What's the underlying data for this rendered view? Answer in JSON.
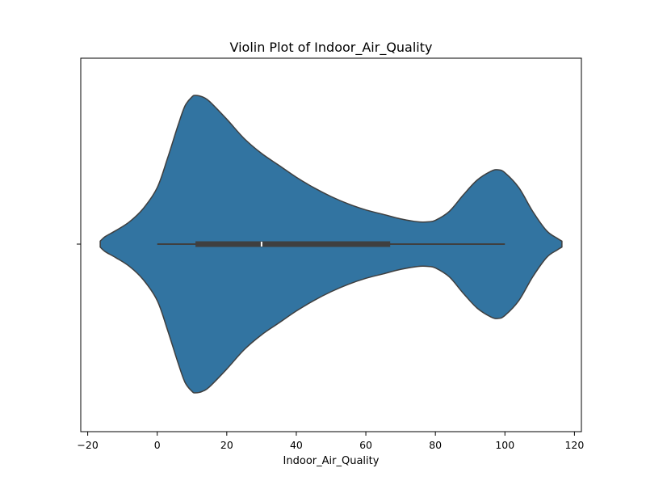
{
  "chart_data": {
    "type": "violin",
    "title": "Violin Plot of Indoor_Air_Quality",
    "xlabel": "Indoor_Air_Quality",
    "ylabel": "",
    "xlim": [
      -22,
      122
    ],
    "x_ticks": [
      -20,
      0,
      20,
      40,
      60,
      80,
      100,
      120
    ],
    "x_tick_labels": [
      "−20",
      "0",
      "20",
      "40",
      "60",
      "80",
      "100",
      "120"
    ],
    "orientation": "horizontal",
    "grid": false,
    "legend": "none",
    "series": [
      {
        "color": "#3274a1",
        "density": [
          [
            -16.4,
            0.02
          ],
          [
            -15,
            0.05
          ],
          [
            -12,
            0.09
          ],
          [
            -8,
            0.15
          ],
          [
            -4,
            0.24
          ],
          [
            0,
            0.38
          ],
          [
            3,
            0.58
          ],
          [
            6,
            0.8
          ],
          [
            8,
            0.93
          ],
          [
            10,
            0.99
          ],
          [
            11,
            1.0
          ],
          [
            13,
            0.99
          ],
          [
            15,
            0.96
          ],
          [
            20,
            0.84
          ],
          [
            25,
            0.71
          ],
          [
            30,
            0.61
          ],
          [
            35,
            0.53
          ],
          [
            40,
            0.45
          ],
          [
            45,
            0.38
          ],
          [
            50,
            0.32
          ],
          [
            55,
            0.27
          ],
          [
            60,
            0.23
          ],
          [
            65,
            0.2
          ],
          [
            70,
            0.17
          ],
          [
            75,
            0.15
          ],
          [
            78,
            0.15
          ],
          [
            80,
            0.16
          ],
          [
            84,
            0.22
          ],
          [
            88,
            0.33
          ],
          [
            92,
            0.43
          ],
          [
            96,
            0.49
          ],
          [
            98,
            0.5
          ],
          [
            100,
            0.48
          ],
          [
            104,
            0.38
          ],
          [
            108,
            0.22
          ],
          [
            112,
            0.09
          ],
          [
            115,
            0.04
          ],
          [
            116.4,
            0.02
          ]
        ],
        "whisker_low": 0,
        "q1": 11,
        "median": 30,
        "q3": 67,
        "whisker_high": 100
      }
    ]
  }
}
